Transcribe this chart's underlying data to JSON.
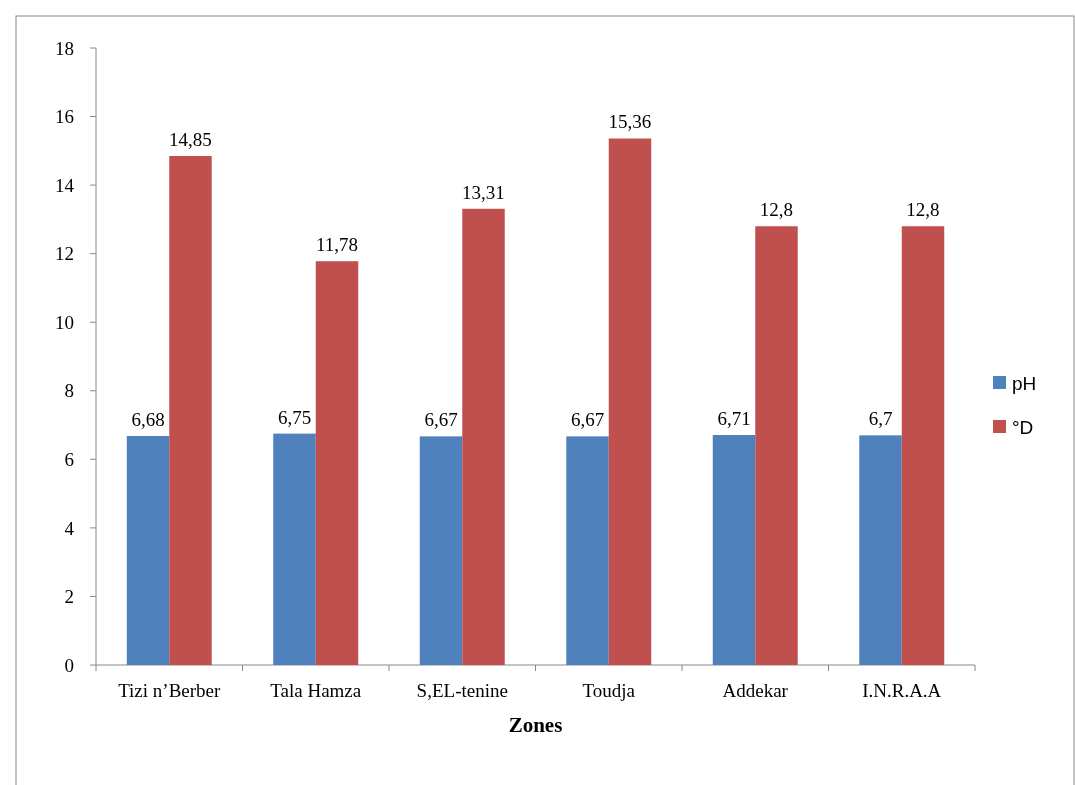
{
  "chart_data": {
    "type": "bar",
    "xlabel": "Zones",
    "categories": [
      "Tizi n’Berber",
      "Tala Hamza",
      "S,EL-tenine",
      "Toudja",
      "Addekar",
      "I.N.R.A.A"
    ],
    "series": [
      {
        "name": "pH",
        "color": "#4f81bd",
        "values": [
          6.68,
          6.75,
          6.67,
          6.67,
          6.71,
          6.7
        ],
        "value_labels": [
          "6,68",
          "6,75",
          "6,67",
          "6,67",
          "6,71",
          "6,7"
        ]
      },
      {
        "name": "°D",
        "color": "#c0504d",
        "values": [
          14.85,
          11.78,
          13.31,
          15.36,
          12.8,
          12.8
        ],
        "value_labels": [
          "14,85",
          "11,78",
          "13,31",
          "15,36",
          "12,8",
          "12,8"
        ]
      }
    ],
    "ylim": [
      0,
      18
    ],
    "yticks": [
      0,
      2,
      4,
      6,
      8,
      10,
      12,
      14,
      16,
      18
    ],
    "grid": false,
    "legend": "right"
  }
}
